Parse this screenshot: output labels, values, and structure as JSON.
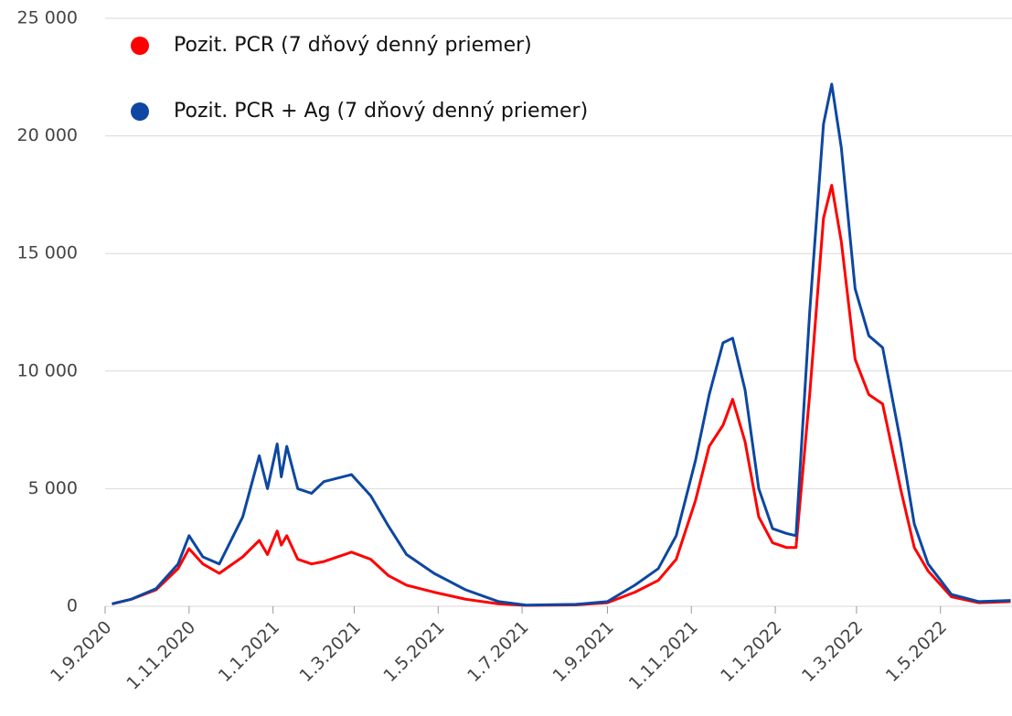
{
  "chart_data": {
    "type": "line",
    "x": [
      "2020-09-06",
      "2020-09-20",
      "2020-10-08",
      "2020-10-24",
      "2020-11-01",
      "2020-11-11",
      "2020-11-23",
      "2020-12-10",
      "2020-12-22",
      "2020-12-28",
      "2021-01-04",
      "2021-01-07",
      "2021-01-11",
      "2021-01-19",
      "2021-01-29",
      "2021-02-07",
      "2021-02-27",
      "2021-03-13",
      "2021-03-26",
      "2021-04-08",
      "2021-04-28",
      "2021-05-21",
      "2021-06-14",
      "2021-07-04",
      "2021-08-09",
      "2021-09-01",
      "2021-09-21",
      "2021-10-08",
      "2021-10-21",
      "2021-11-04",
      "2021-11-14",
      "2021-11-24",
      "2021-12-01",
      "2021-12-10",
      "2021-12-20",
      "2021-12-30",
      "2022-01-09",
      "2022-01-16",
      "2022-01-26",
      "2022-02-05",
      "2022-02-11",
      "2022-02-18",
      "2022-02-28",
      "2022-03-10",
      "2022-03-20",
      "2022-04-02",
      "2022-04-12",
      "2022-04-22",
      "2022-05-09",
      "2022-05-29",
      "2022-06-21"
    ],
    "series": [
      {
        "name": "Pozit. PCR (7 dňový denný priemer)",
        "color": "#ff0000",
        "values": [
          100,
          300,
          700,
          1600,
          2450,
          1800,
          1400,
          2100,
          2800,
          2200,
          3200,
          2600,
          3000,
          2000,
          1800,
          1900,
          2300,
          2000,
          1300,
          900,
          600,
          300,
          100,
          40,
          60,
          150,
          600,
          1100,
          2000,
          4500,
          6800,
          7700,
          8800,
          7000,
          3800,
          2700,
          2500,
          2500,
          9000,
          16500,
          17900,
          15500,
          10500,
          9000,
          8600,
          5000,
          2500,
          1500,
          400,
          150,
          200
        ]
      },
      {
        "name": "Pozit. PCR + Ag (7 dňový denný priemer)",
        "color": "#0d47a1",
        "values": [
          100,
          300,
          750,
          1800,
          3000,
          2100,
          1800,
          3800,
          6400,
          5000,
          6900,
          5500,
          6800,
          5000,
          4800,
          5300,
          5600,
          4700,
          3400,
          2200,
          1400,
          700,
          200,
          50,
          80,
          200,
          900,
          1600,
          3000,
          6200,
          9000,
          11200,
          11400,
          9200,
          5000,
          3300,
          3100,
          3000,
          12500,
          20500,
          22200,
          19500,
          13500,
          11500,
          11000,
          7000,
          3500,
          1800,
          500,
          200,
          250
        ]
      }
    ],
    "xlim": [
      "2020-09-01",
      "2022-06-22"
    ],
    "xticks": [
      {
        "value": "2020-09-01",
        "label": "1.9.2020"
      },
      {
        "value": "2020-11-01",
        "label": "1.11.2020"
      },
      {
        "value": "2021-01-01",
        "label": "1.1.2021"
      },
      {
        "value": "2021-03-01",
        "label": "1.3.2021"
      },
      {
        "value": "2021-05-01",
        "label": "1.5.2021"
      },
      {
        "value": "2021-07-01",
        "label": "1.7.2021"
      },
      {
        "value": "2021-09-01",
        "label": "1.9.2021"
      },
      {
        "value": "2021-11-01",
        "label": "1.11.2021"
      },
      {
        "value": "2022-01-01",
        "label": "1.1.2022"
      },
      {
        "value": "2022-03-01",
        "label": "1.3.2022"
      },
      {
        "value": "2022-05-01",
        "label": "1.5.2022"
      }
    ],
    "ylim": [
      0,
      25000
    ],
    "yticks": [
      0,
      {
        "value": 5000,
        "label": "5 000"
      },
      {
        "value": 10000,
        "label": "10 000"
      },
      {
        "value": 15000,
        "label": "15 000"
      },
      {
        "value": 20000,
        "label": "20 000"
      },
      {
        "value": 25000,
        "label": "25 000"
      }
    ],
    "grid": true
  }
}
